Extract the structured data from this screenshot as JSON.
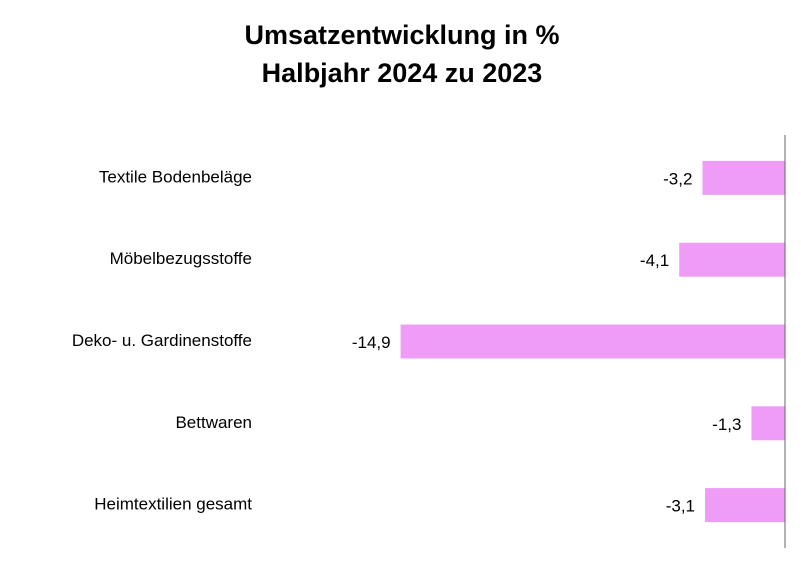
{
  "chart_data": {
    "type": "barh",
    "title": "Umsatzentwicklung in %",
    "subtitle": "Halbjahr 2024 zu 2023",
    "categories": [
      "Textile Bodenbeläge",
      "Möbelbezugsstoffe",
      "Deko- u. Gardinenstoffe",
      "Bettwaren",
      "Heimtextilien gesamt"
    ],
    "values": [
      -3.2,
      -4.1,
      -14.9,
      -1.3,
      -3.1
    ],
    "value_labels": [
      "-3,2",
      "-4,1",
      "-14,9",
      "-1,3",
      "-3,1"
    ],
    "color": "#ee9cf5",
    "xlim": [
      -15,
      0
    ]
  }
}
